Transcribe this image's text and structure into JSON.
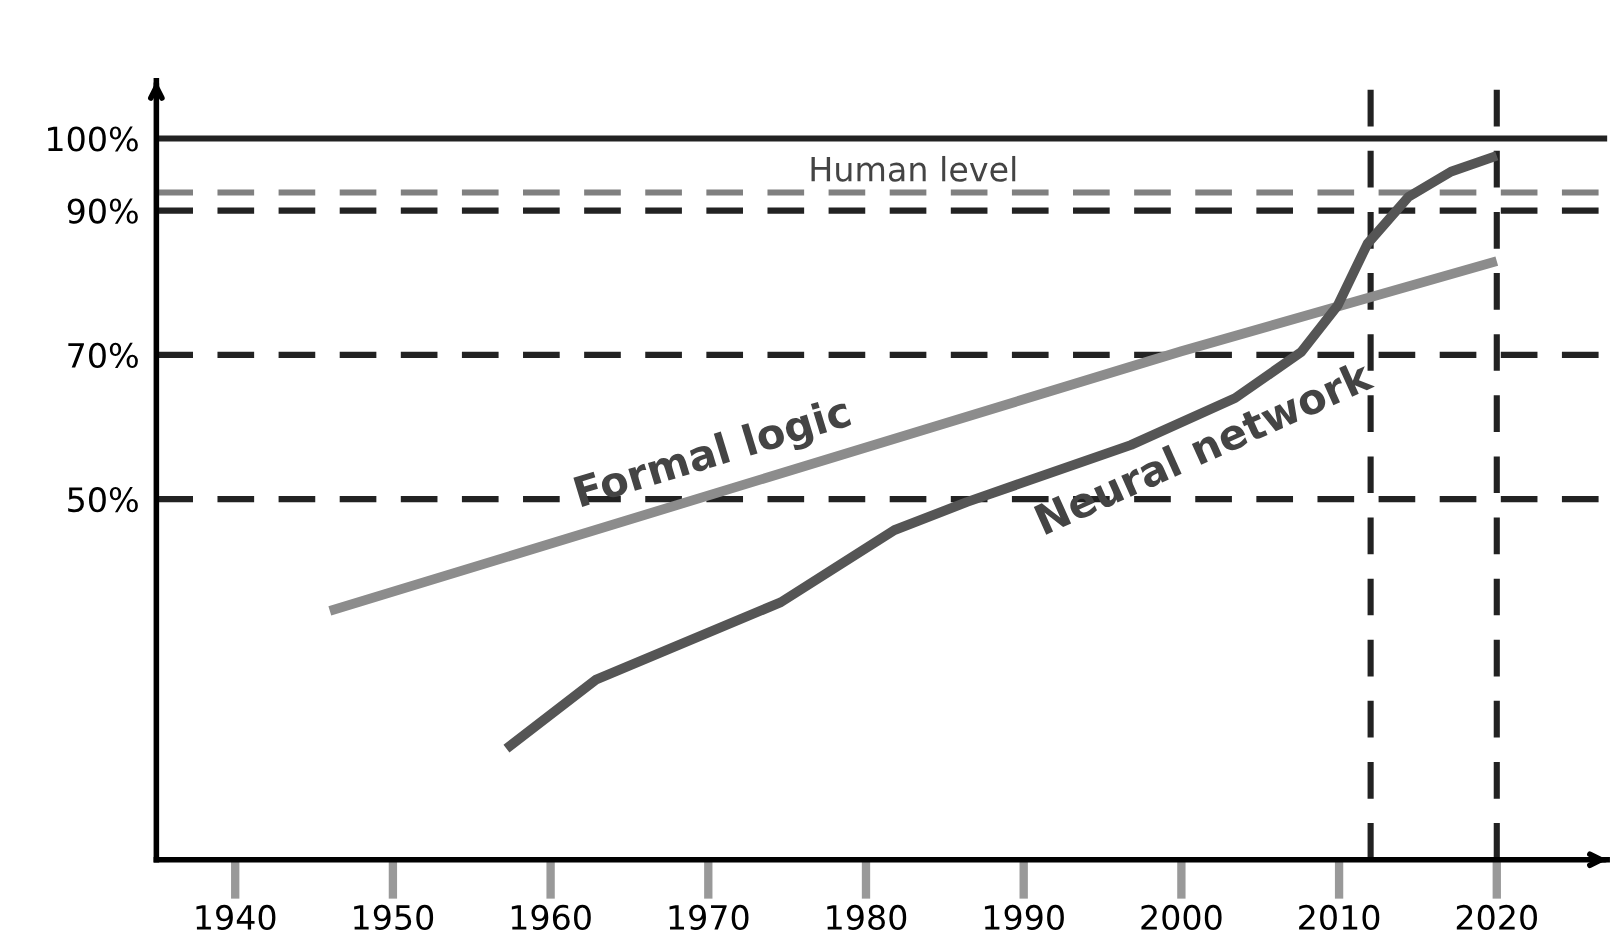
{
  "chart_data": {
    "type": "line",
    "xlim": [
      1935,
      2027
    ],
    "ylim": [
      0,
      108
    ],
    "xticks": [
      1940,
      1950,
      1960,
      1970,
      1980,
      1990,
      2000,
      2010,
      2020
    ],
    "yticks": [
      {
        "value": 50,
        "label": "50%"
      },
      {
        "value": 70,
        "label": "70%"
      },
      {
        "value": 90,
        "label": "90%"
      },
      {
        "value": 100,
        "label": "100%"
      }
    ],
    "grid": false,
    "legend": false,
    "marker": "none",
    "line_style": "solid",
    "series": [
      {
        "name": "Formal logic",
        "color": "#8c8c8c",
        "x": [
          1946,
          2000,
          2020
        ],
        "values": [
          34.5,
          70.5,
          83
        ]
      },
      {
        "name": "Neural network",
        "color": "#555555",
        "x": [
          1957.2,
          1962.9,
          1974.6,
          1981.8,
          1986.4,
          1996.8,
          2003.4,
          2007.6,
          2009.9,
          2011.8,
          2014.4,
          2017.1,
          2020
        ],
        "values": [
          15.4,
          25,
          35.7,
          45.7,
          49.6,
          57.5,
          64,
          70.4,
          76.8,
          85.4,
          91.9,
          95.4,
          97.6
        ]
      }
    ],
    "ref_lines": [
      {
        "axis": "y",
        "value": 100,
        "color": "#222222",
        "line_style": "solid"
      },
      {
        "axis": "y",
        "value": 92.5,
        "label": "Human level",
        "color": "#808080",
        "line_style": "dashed"
      },
      {
        "axis": "y",
        "value": 90,
        "color": "#222222",
        "line_style": "dashed"
      },
      {
        "axis": "y",
        "value": 70,
        "color": "#222222",
        "line_style": "dashed"
      },
      {
        "axis": "y",
        "value": 50,
        "color": "#222222",
        "line_style": "dashed"
      },
      {
        "axis": "x",
        "value": 2012,
        "color": "#222222",
        "line_style": "dashed"
      },
      {
        "axis": "x",
        "value": 2020,
        "color": "#222222",
        "line_style": "dashed"
      }
    ]
  }
}
